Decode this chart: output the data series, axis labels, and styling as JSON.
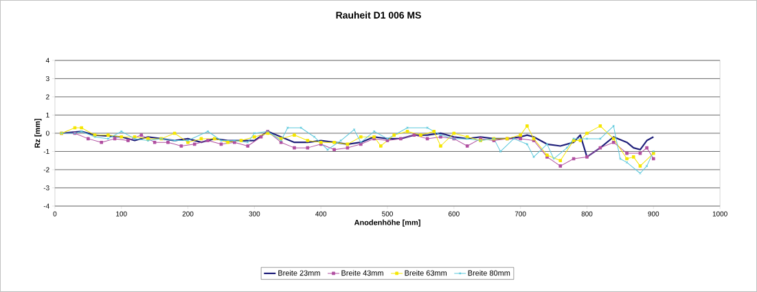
{
  "chart_data": {
    "type": "line",
    "title": "Rauheit D1 006 MS",
    "xlabel": "Anodenhöhe [mm]",
    "ylabel": "Rz [mm]",
    "xlim": [
      0,
      1000
    ],
    "xticks": [
      0,
      100,
      200,
      300,
      400,
      500,
      600,
      700,
      800,
      900,
      1000
    ],
    "ylim": [
      -4,
      4
    ],
    "yticks": [
      -4,
      -3,
      -2,
      -1,
      0,
      1,
      2,
      3,
      4
    ],
    "grid": "y",
    "legend": "bottom",
    "series": [
      {
        "name": "Breite 23mm",
        "color": "#1f1f7a",
        "marker": "none",
        "x": [
          10,
          40,
          60,
          100,
          120,
          140,
          160,
          180,
          200,
          220,
          240,
          260,
          280,
          300,
          320,
          340,
          360,
          380,
          400,
          420,
          440,
          460,
          480,
          500,
          520,
          540,
          560,
          580,
          600,
          620,
          640,
          660,
          680,
          700,
          710,
          720,
          740,
          760,
          780,
          790,
          800,
          820,
          840,
          860,
          870,
          880,
          890,
          900
        ],
        "values": [
          0,
          0.1,
          -0.1,
          -0.2,
          -0.4,
          -0.2,
          -0.3,
          -0.4,
          -0.3,
          -0.5,
          -0.3,
          -0.4,
          -0.4,
          -0.4,
          0.1,
          -0.2,
          -0.5,
          -0.5,
          -0.4,
          -0.5,
          -0.6,
          -0.5,
          -0.2,
          -0.3,
          -0.3,
          -0.1,
          -0.1,
          0,
          -0.2,
          -0.3,
          -0.2,
          -0.3,
          -0.3,
          -0.2,
          -0.1,
          -0.2,
          -0.6,
          -0.7,
          -0.5,
          -0.1,
          -1.3,
          -0.8,
          -0.2,
          -0.5,
          -0.8,
          -0.9,
          -0.4,
          -0.2
        ]
      },
      {
        "name": "Breite 43mm",
        "color": "#b04ea0",
        "marker": "square",
        "x": [
          10,
          30,
          50,
          70,
          90,
          110,
          130,
          150,
          170,
          190,
          210,
          230,
          250,
          270,
          290,
          310,
          320,
          340,
          360,
          380,
          400,
          420,
          440,
          460,
          480,
          500,
          520,
          540,
          560,
          580,
          600,
          620,
          640,
          660,
          680,
          700,
          720,
          740,
          760,
          780,
          800,
          820,
          840,
          860,
          880,
          890,
          900
        ],
        "values": [
          0,
          0,
          -0.3,
          -0.5,
          -0.3,
          -0.4,
          -0.1,
          -0.5,
          -0.5,
          -0.7,
          -0.6,
          -0.4,
          -0.6,
          -0.5,
          -0.7,
          -0.2,
          0.1,
          -0.5,
          -0.8,
          -0.8,
          -0.6,
          -0.9,
          -0.8,
          -0.6,
          -0.3,
          -0.4,
          -0.3,
          -0.1,
          -0.3,
          -0.2,
          -0.3,
          -0.7,
          -0.3,
          -0.4,
          -0.3,
          -0.3,
          -0.4,
          -1.3,
          -1.8,
          -1.4,
          -1.3,
          -0.8,
          -0.5,
          -1.1,
          -1.1,
          -0.8,
          -1.4
        ]
      },
      {
        "name": "Breite 63mm",
        "color": "#f5e600",
        "marker": "square",
        "x": [
          10,
          30,
          40,
          60,
          80,
          100,
          120,
          140,
          160,
          180,
          200,
          220,
          240,
          260,
          280,
          300,
          320,
          340,
          360,
          380,
          400,
          420,
          440,
          460,
          480,
          490,
          510,
          530,
          550,
          570,
          580,
          600,
          620,
          640,
          660,
          680,
          700,
          710,
          720,
          740,
          760,
          780,
          790,
          800,
          820,
          840,
          860,
          870,
          880,
          900
        ],
        "values": [
          0,
          0.3,
          0.3,
          -0.1,
          -0.1,
          -0.2,
          -0.2,
          -0.3,
          -0.3,
          0,
          -0.5,
          -0.3,
          -0.3,
          -0.5,
          -0.4,
          -0.2,
          0,
          -0.3,
          -0.1,
          -0.4,
          -0.5,
          -0.5,
          -0.6,
          -0.2,
          -0.2,
          -0.7,
          -0.1,
          0.1,
          -0.1,
          0.1,
          -0.7,
          0,
          -0.2,
          -0.4,
          -0.3,
          -0.3,
          -0.1,
          0.4,
          -0.3,
          -1.2,
          -1.5,
          -0.4,
          -0.4,
          0,
          0.4,
          -0.3,
          -1.4,
          -1.3,
          -1.8,
          -1.1
        ]
      },
      {
        "name": "Breite 80mm",
        "color": "#5bc8dc",
        "marker": "cross",
        "x": [
          10,
          30,
          40,
          60,
          80,
          100,
          120,
          140,
          160,
          180,
          200,
          230,
          250,
          270,
          290,
          300,
          320,
          340,
          350,
          370,
          390,
          410,
          430,
          450,
          460,
          480,
          500,
          530,
          560,
          580,
          600,
          620,
          640,
          660,
          670,
          690,
          710,
          720,
          740,
          750,
          770,
          780,
          800,
          820,
          840,
          850,
          860,
          880,
          890,
          900
        ],
        "values": [
          0,
          0,
          0.1,
          -0.2,
          -0.3,
          0.1,
          -0.3,
          -0.4,
          -0.3,
          -0.4,
          -0.4,
          0.1,
          -0.4,
          -0.4,
          -0.5,
          0,
          0.1,
          -0.4,
          0.3,
          0.3,
          -0.2,
          -0.9,
          -0.4,
          0.2,
          -0.5,
          0.1,
          -0.3,
          0.3,
          0.3,
          -0.1,
          -0.3,
          -0.3,
          -0.4,
          -0.3,
          -1.0,
          -0.3,
          -0.6,
          -1.3,
          -0.6,
          -1.4,
          -0.8,
          -0.3,
          -0.3,
          -0.3,
          0.4,
          -1.4,
          -1.6,
          -2.2,
          -1.8,
          -1.0
        ]
      }
    ]
  }
}
